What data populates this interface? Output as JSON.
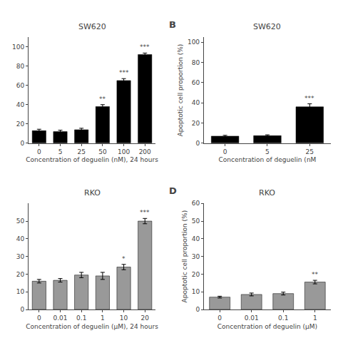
{
  "chart_data": [
    {
      "type": "bar",
      "title": "SW620",
      "categories": [
        "0",
        "5",
        "25",
        "50",
        "100",
        "200"
      ],
      "values": [
        13.0,
        12.0,
        14.0,
        38.0,
        65.0,
        92.0
      ],
      "errors": [
        1.5,
        1.5,
        1.5,
        2.0,
        2.0,
        1.5
      ],
      "color": "#000000",
      "xlabel": "Concentration of deguelin (nM), 24 hours",
      "ylim": [
        0,
        110
      ],
      "yticks": [
        0,
        20,
        40,
        60,
        80,
        100
      ],
      "grid": false,
      "annotations": [
        {
          "category": "50",
          "text": "**"
        },
        {
          "category": "100",
          "text": "***"
        },
        {
          "category": "200",
          "text": "***"
        }
      ]
    },
    {
      "type": "bar",
      "title": "SW620",
      "panel_label": "B",
      "categories": [
        "0",
        "5",
        "25"
      ],
      "values": [
        7.0,
        7.5,
        36.0
      ],
      "errors": [
        0.8,
        0.8,
        3.0
      ],
      "color": "#000000",
      "xlabel": "Concentration of deguelin (nM",
      "ylabel": "Apoptotic cell proportion (%)",
      "ylim": [
        0,
        105
      ],
      "yticks": [
        0,
        20,
        40,
        60,
        80,
        100
      ],
      "grid": false,
      "annotations": [
        {
          "category": "25",
          "text": "***"
        }
      ]
    },
    {
      "type": "bar",
      "title": "RKO",
      "categories": [
        "0",
        "0.01",
        "0.1",
        "1",
        "10",
        "20"
      ],
      "values": [
        16.0,
        16.5,
        19.5,
        19.0,
        24.0,
        50.0
      ],
      "errors": [
        1.0,
        1.0,
        1.5,
        2.0,
        1.5,
        1.5
      ],
      "color": "#999999",
      "xlabel": "Concentration of deguelin (μM), 24 hours",
      "ylim": [
        0,
        60
      ],
      "yticks": [
        0,
        10,
        20,
        30,
        40,
        50
      ],
      "grid": false,
      "annotations": [
        {
          "category": "10",
          "text": "*"
        },
        {
          "category": "20",
          "text": "***"
        }
      ]
    },
    {
      "type": "bar",
      "title": "RKO",
      "panel_label": "D",
      "categories": [
        "0",
        "0.01",
        "0.1",
        "1"
      ],
      "values": [
        7.0,
        8.5,
        9.0,
        15.5
      ],
      "errors": [
        0.5,
        0.8,
        0.8,
        1.0
      ],
      "color": "#999999",
      "xlabel": "Concentration of deguelin (μM)",
      "ylabel": "Apoptotic cell proportion (%)",
      "ylim": [
        0,
        60
      ],
      "yticks": [
        0,
        10,
        20,
        30,
        40,
        50,
        60
      ],
      "grid": false,
      "annotations": [
        {
          "category": "1",
          "text": "**"
        }
      ]
    }
  ]
}
